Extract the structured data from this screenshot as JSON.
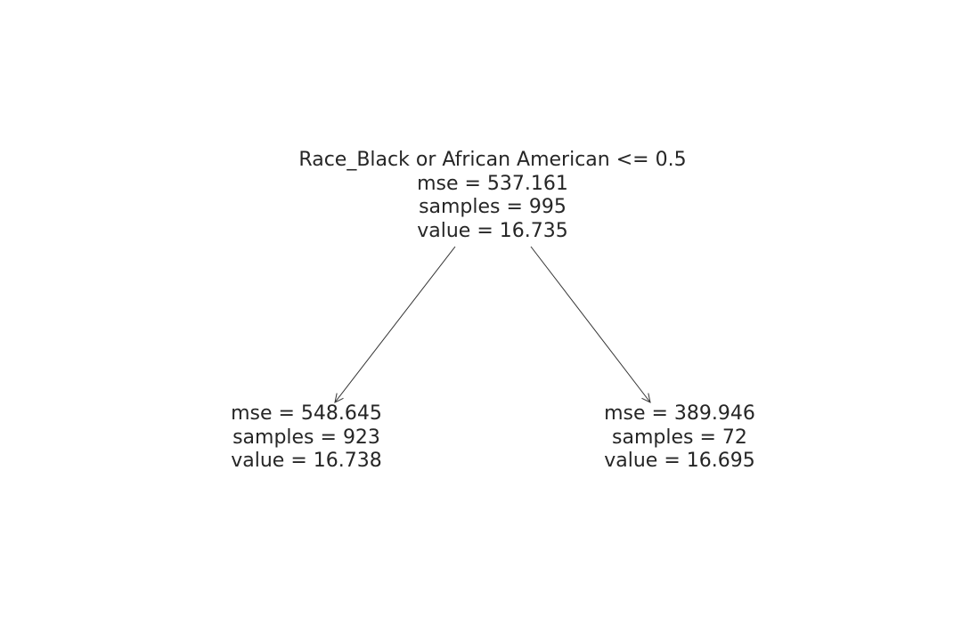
{
  "tree": {
    "root": {
      "split": "Race_Black or African American <= 0.5",
      "mse": "mse = 537.161",
      "samples": "samples = 995",
      "value": "value = 16.735"
    },
    "left": {
      "mse": "mse = 548.645",
      "samples": "samples = 923",
      "value": "value = 16.738"
    },
    "right": {
      "mse": "mse = 389.946",
      "samples": "samples = 72",
      "value": "value = 16.695"
    }
  },
  "colors": {
    "text": "#262626",
    "edge": "#333333",
    "background": "#ffffff"
  }
}
